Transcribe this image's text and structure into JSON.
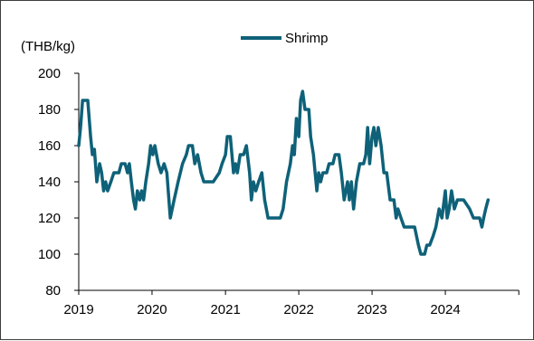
{
  "chart_data": {
    "type": "line",
    "title": "",
    "ylabel": "(THB/kg)",
    "xlabel": "",
    "xlim": [
      "2019-01-01",
      "2024-12-31"
    ],
    "ylim": [
      80,
      200
    ],
    "yticks": [
      80,
      100,
      120,
      140,
      160,
      180,
      200
    ],
    "xticks": [
      "2019",
      "2020",
      "2021",
      "2022",
      "2023",
      "2024"
    ],
    "grid": false,
    "legend_position": "top-center",
    "colors": {
      "series": "#0e6178",
      "axis": "#000000"
    },
    "series": [
      {
        "name": "Shrimp",
        "points": [
          [
            "2019-01-01",
            160
          ],
          [
            "2019-01-10",
            170
          ],
          [
            "2019-01-20",
            185
          ],
          [
            "2019-02-15",
            185
          ],
          [
            "2019-03-01",
            165
          ],
          [
            "2019-03-10",
            155
          ],
          [
            "2019-03-20",
            158
          ],
          [
            "2019-04-01",
            140
          ],
          [
            "2019-04-15",
            150
          ],
          [
            "2019-04-25",
            145
          ],
          [
            "2019-05-05",
            135
          ],
          [
            "2019-05-15",
            140
          ],
          [
            "2019-05-25",
            135
          ],
          [
            "2019-06-10",
            140
          ],
          [
            "2019-06-25",
            145
          ],
          [
            "2019-07-20",
            145
          ],
          [
            "2019-08-01",
            150
          ],
          [
            "2019-08-20",
            150
          ],
          [
            "2019-09-01",
            145
          ],
          [
            "2019-09-10",
            150
          ],
          [
            "2019-09-20",
            140
          ],
          [
            "2019-10-01",
            130
          ],
          [
            "2019-10-10",
            125
          ],
          [
            "2019-10-20",
            135
          ],
          [
            "2019-11-01",
            130
          ],
          [
            "2019-11-10",
            135
          ],
          [
            "2019-11-20",
            130
          ],
          [
            "2019-12-01",
            140
          ],
          [
            "2019-12-15",
            150
          ],
          [
            "2019-12-25",
            160
          ],
          [
            "2020-01-05",
            155
          ],
          [
            "2020-01-15",
            160
          ],
          [
            "2020-02-01",
            150
          ],
          [
            "2020-02-15",
            145
          ],
          [
            "2020-03-01",
            150
          ],
          [
            "2020-03-15",
            145
          ],
          [
            "2020-04-01",
            120
          ],
          [
            "2020-04-20",
            130
          ],
          [
            "2020-05-10",
            140
          ],
          [
            "2020-06-01",
            150
          ],
          [
            "2020-06-20",
            155
          ],
          [
            "2020-07-01",
            160
          ],
          [
            "2020-07-20",
            160
          ],
          [
            "2020-08-01",
            150
          ],
          [
            "2020-08-15",
            155
          ],
          [
            "2020-09-01",
            145
          ],
          [
            "2020-09-15",
            140
          ],
          [
            "2020-10-01",
            140
          ],
          [
            "2020-11-01",
            140
          ],
          [
            "2020-12-01",
            145
          ],
          [
            "2020-12-15",
            150
          ],
          [
            "2021-01-01",
            155
          ],
          [
            "2021-01-10",
            165
          ],
          [
            "2021-01-25",
            165
          ],
          [
            "2021-02-10",
            145
          ],
          [
            "2021-02-20",
            150
          ],
          [
            "2021-03-01",
            145
          ],
          [
            "2021-03-15",
            155
          ],
          [
            "2021-04-01",
            155
          ],
          [
            "2021-04-15",
            160
          ],
          [
            "2021-05-01",
            145
          ],
          [
            "2021-05-10",
            130
          ],
          [
            "2021-05-20",
            140
          ],
          [
            "2021-06-01",
            135
          ],
          [
            "2021-06-15",
            140
          ],
          [
            "2021-07-01",
            145
          ],
          [
            "2021-07-15",
            130
          ],
          [
            "2021-08-01",
            120
          ],
          [
            "2021-09-01",
            120
          ],
          [
            "2021-10-01",
            120
          ],
          [
            "2021-10-15",
            125
          ],
          [
            "2021-11-01",
            140
          ],
          [
            "2021-11-20",
            150
          ],
          [
            "2021-12-01",
            160
          ],
          [
            "2021-12-10",
            155
          ],
          [
            "2021-12-20",
            175
          ],
          [
            "2022-01-01",
            165
          ],
          [
            "2022-01-10",
            185
          ],
          [
            "2022-01-20",
            190
          ],
          [
            "2022-02-01",
            180
          ],
          [
            "2022-02-20",
            180
          ],
          [
            "2022-03-01",
            165
          ],
          [
            "2022-03-15",
            155
          ],
          [
            "2022-04-01",
            135
          ],
          [
            "2022-04-10",
            145
          ],
          [
            "2022-04-20",
            140
          ],
          [
            "2022-05-01",
            145
          ],
          [
            "2022-05-20",
            145
          ],
          [
            "2022-06-01",
            150
          ],
          [
            "2022-06-20",
            150
          ],
          [
            "2022-07-01",
            155
          ],
          [
            "2022-07-20",
            155
          ],
          [
            "2022-08-01",
            145
          ],
          [
            "2022-08-15",
            130
          ],
          [
            "2022-09-01",
            140
          ],
          [
            "2022-09-10",
            130
          ],
          [
            "2022-09-20",
            140
          ],
          [
            "2022-10-01",
            125
          ],
          [
            "2022-10-15",
            140
          ],
          [
            "2022-11-01",
            150
          ],
          [
            "2022-11-20",
            150
          ],
          [
            "2022-12-01",
            155
          ],
          [
            "2022-12-10",
            170
          ],
          [
            "2022-12-20",
            150
          ],
          [
            "2023-01-01",
            165
          ],
          [
            "2023-01-10",
            170
          ],
          [
            "2023-01-20",
            160
          ],
          [
            "2023-02-01",
            170
          ],
          [
            "2023-02-15",
            160
          ],
          [
            "2023-03-01",
            145
          ],
          [
            "2023-03-15",
            145
          ],
          [
            "2023-04-01",
            130
          ],
          [
            "2023-04-20",
            130
          ],
          [
            "2023-05-01",
            120
          ],
          [
            "2023-05-10",
            125
          ],
          [
            "2023-05-25",
            120
          ],
          [
            "2023-06-10",
            115
          ],
          [
            "2023-07-01",
            115
          ],
          [
            "2023-08-01",
            115
          ],
          [
            "2023-08-20",
            105
          ],
          [
            "2023-09-01",
            100
          ],
          [
            "2023-09-20",
            100
          ],
          [
            "2023-10-01",
            105
          ],
          [
            "2023-10-15",
            105
          ],
          [
            "2023-11-01",
            110
          ],
          [
            "2023-11-15",
            115
          ],
          [
            "2023-12-01",
            125
          ],
          [
            "2023-12-15",
            120
          ],
          [
            "2024-01-01",
            135
          ],
          [
            "2024-01-10",
            120
          ],
          [
            "2024-01-20",
            125
          ],
          [
            "2024-02-01",
            135
          ],
          [
            "2024-02-15",
            125
          ],
          [
            "2024-03-01",
            130
          ],
          [
            "2024-04-01",
            130
          ],
          [
            "2024-05-01",
            125
          ],
          [
            "2024-05-20",
            120
          ],
          [
            "2024-06-01",
            120
          ],
          [
            "2024-06-20",
            120
          ],
          [
            "2024-07-01",
            115
          ],
          [
            "2024-07-10",
            120
          ],
          [
            "2024-07-20",
            125
          ],
          [
            "2024-08-01",
            130
          ]
        ]
      }
    ]
  }
}
